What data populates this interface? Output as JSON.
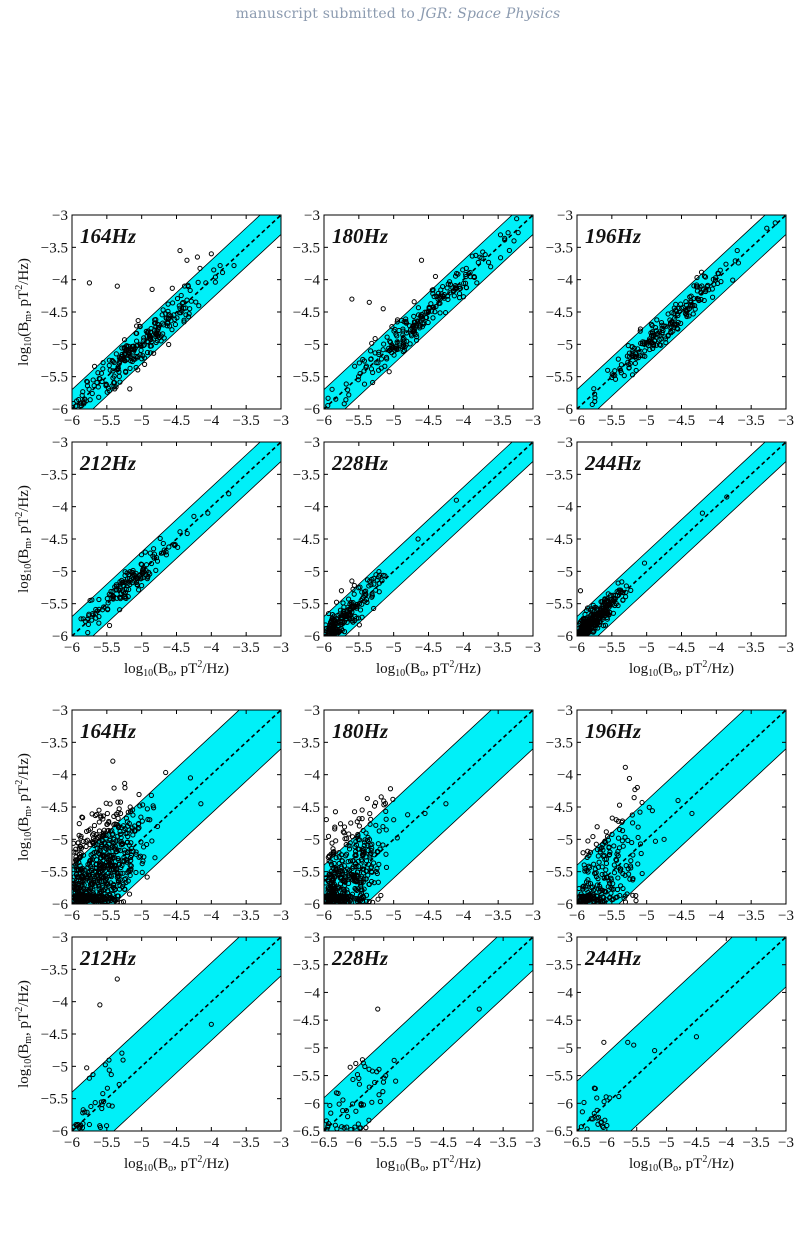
{
  "header": {
    "prefix": "manuscript submitted to ",
    "journal": "JGR: Space Physics"
  },
  "axis_labels": {
    "ylabel_main": "log",
    "ylabel_sub": "10",
    "ylabel_rest": "(B",
    "ylabel_subB": "m",
    "ylabel_tail": ", pT",
    "ylabel_sup": "2",
    "ylabel_end": "/Hz)",
    "xlabel_main": "log",
    "xlabel_sub": "10",
    "xlabel_rest": "(B",
    "xlabel_subB": "o",
    "xlabel_tail": ", pT",
    "xlabel_sup": "2",
    "xlabel_end": "/Hz)"
  },
  "chart_data": [
    {
      "type": "scatter",
      "title": "164Hz",
      "xlim": [
        -6,
        -3
      ],
      "ylim": [
        -6,
        -3
      ],
      "xticks": [
        "−6",
        "−5.5",
        "−5",
        "−4.5",
        "−4",
        "−3.5",
        "−3"
      ],
      "yticks": [
        "−6",
        "−5.5",
        "−5",
        "−4.5",
        "−4",
        "−3.5",
        "−3"
      ],
      "band_halfwidth": 0.3,
      "reference_line": "y = x",
      "points": {
        "x_center": -4.95,
        "x_spread": 0.45,
        "y_spread": 0.17,
        "n": 250,
        "outliers": [
          [
            -5.75,
            -4.05
          ],
          [
            -5.35,
            -4.1
          ],
          [
            -4.85,
            -4.15
          ],
          [
            -4.35,
            -3.7
          ],
          [
            -4.2,
            -3.65
          ],
          [
            -4.0,
            -3.6
          ],
          [
            -4.45,
            -3.55
          ]
        ]
      }
    },
    {
      "type": "scatter",
      "title": "180Hz",
      "xlim": [
        -6,
        -3
      ],
      "ylim": [
        -6,
        -3
      ],
      "xticks": [
        "−6",
        "−5.5",
        "−5",
        "−4.5",
        "−4",
        "−3.5",
        "−3"
      ],
      "yticks": [
        "−6",
        "−5.5",
        "−5",
        "−4.5",
        "−4",
        "−3.5",
        "−3"
      ],
      "band_halfwidth": 0.3,
      "reference_line": "y = x",
      "points": {
        "x_center": -4.65,
        "x_spread": 0.55,
        "y_spread": 0.14,
        "n": 230,
        "outliers": [
          [
            -5.6,
            -4.3
          ],
          [
            -5.35,
            -4.35
          ],
          [
            -5.15,
            -4.45
          ],
          [
            -4.6,
            -3.7
          ],
          [
            -4.4,
            -3.95
          ],
          [
            -4.85,
            -4.65
          ]
        ]
      }
    },
    {
      "type": "scatter",
      "title": "196Hz",
      "xlim": [
        -6,
        -3
      ],
      "ylim": [
        -6,
        -3
      ],
      "xticks": [
        "−6",
        "−5.5",
        "−5",
        "−4.5",
        "−4",
        "−3.5",
        "−3"
      ],
      "yticks": [
        "−6",
        "−5.5",
        "−5",
        "−4.5",
        "−4",
        "−3.5",
        "−3"
      ],
      "band_halfwidth": 0.3,
      "reference_line": "y = x",
      "points": {
        "x_center": -4.7,
        "x_spread": 0.5,
        "y_spread": 0.12,
        "n": 200,
        "outliers": [
          [
            -3.7,
            -3.55
          ]
        ]
      }
    },
    {
      "type": "scatter",
      "title": "212Hz",
      "xlim": [
        -6,
        -3
      ],
      "ylim": [
        -6,
        -3
      ],
      "xticks": [
        "−6",
        "−5.5",
        "−5",
        "−4.5",
        "−4",
        "−3.5",
        "−3"
      ],
      "yticks": [
        "−6",
        "−5.5",
        "−5",
        "−4.5",
        "−4",
        "−3.5",
        "−3"
      ],
      "band_halfwidth": 0.3,
      "reference_line": "y = x",
      "points": {
        "x_center": -5.2,
        "x_spread": 0.35,
        "y_spread": 0.12,
        "n": 150,
        "outliers": [
          [
            -4.05,
            -4.1
          ],
          [
            -3.75,
            -3.8
          ],
          [
            -4.25,
            -4.15
          ]
        ]
      }
    },
    {
      "type": "scatter",
      "title": "228Hz",
      "xlim": [
        -6,
        -3
      ],
      "ylim": [
        -6,
        -3
      ],
      "xticks": [
        "−6",
        "−5.5",
        "−5",
        "−4.5",
        "−4",
        "−3.5",
        "−3"
      ],
      "yticks": [
        "−6",
        "−5.5",
        "−5",
        "−4.5",
        "−4",
        "−3.5",
        "−3"
      ],
      "band_halfwidth": 0.3,
      "reference_line": "y = x",
      "points": {
        "x_center": -5.7,
        "x_spread": 0.25,
        "y_spread": 0.12,
        "n": 200,
        "outliers": [
          [
            -4.1,
            -3.9
          ],
          [
            -4.65,
            -4.5
          ],
          [
            -5.6,
            -5.15
          ],
          [
            -5.75,
            -5.3
          ]
        ]
      }
    },
    {
      "type": "scatter",
      "title": "244Hz",
      "xlim": [
        -6,
        -3
      ],
      "ylim": [
        -6,
        -3
      ],
      "xticks": [
        "−6",
        "−5.5",
        "−5",
        "−4.5",
        "−4",
        "−3.5",
        "−3"
      ],
      "yticks": [
        "−6",
        "−5.5",
        "−5",
        "−4.5",
        "−4",
        "−3.5",
        "−3"
      ],
      "band_halfwidth": 0.3,
      "reference_line": "y = x",
      "points": {
        "x_center": -5.75,
        "x_spread": 0.22,
        "y_spread": 0.09,
        "n": 300,
        "outliers": [
          [
            -3.85,
            -3.85
          ],
          [
            -4.2,
            -4.1
          ],
          [
            -5.95,
            -5.3
          ],
          [
            -5.8,
            -5.6
          ]
        ]
      }
    },
    {
      "type": "scatter",
      "title": "164Hz",
      "xlim": [
        -6,
        -3
      ],
      "ylim": [
        -6,
        -3
      ],
      "xticks": [
        "−6",
        "−5.5",
        "−5",
        "−4.5",
        "−4",
        "−3.5",
        "−3"
      ],
      "yticks": [
        "−6",
        "−5.5",
        "−5",
        "−4.5",
        "−4",
        "−3.5",
        "−3"
      ],
      "band_halfwidth": 0.6,
      "reference_line": "y = x",
      "points": {
        "x_center": -5.65,
        "x_spread": 0.3,
        "y_spread": 0.45,
        "n": 700,
        "outliers": [
          [
            -4.15,
            -4.45
          ],
          [
            -4.3,
            -4.05
          ]
        ]
      }
    },
    {
      "type": "scatter",
      "title": "180Hz",
      "xlim": [
        -6,
        -3
      ],
      "ylim": [
        -6,
        -3
      ],
      "xticks": [
        "−6",
        "−5.5",
        "−5",
        "−4.5",
        "−4",
        "−3.5",
        "−3"
      ],
      "yticks": [
        "−6",
        "−5.5",
        "−5",
        "−4.5",
        "−4",
        "−3.5",
        "−3"
      ],
      "band_halfwidth": 0.6,
      "reference_line": "y = x",
      "points": {
        "x_center": -5.7,
        "x_spread": 0.28,
        "y_spread": 0.45,
        "n": 450,
        "outliers": [
          [
            -4.55,
            -4.6
          ],
          [
            -4.25,
            -4.45
          ]
        ]
      }
    },
    {
      "type": "scatter",
      "title": "196Hz",
      "xlim": [
        -6,
        -3
      ],
      "ylim": [
        -6,
        -3
      ],
      "xticks": [
        "−6",
        "−5.5",
        "−5",
        "−4.5",
        "−4",
        "−3.5",
        "−3"
      ],
      "yticks": [
        "−6",
        "−5.5",
        "−5",
        "−4.5",
        "−4",
        "−3.5",
        "−3"
      ],
      "band_halfwidth": 0.6,
      "reference_line": "y = x",
      "points": {
        "x_center": -5.65,
        "x_spread": 0.3,
        "y_spread": 0.45,
        "n": 250,
        "outliers": [
          [
            -4.75,
            -5.0
          ],
          [
            -4.55,
            -4.4
          ],
          [
            -4.35,
            -4.6
          ]
        ]
      }
    },
    {
      "type": "scatter",
      "title": "212Hz",
      "xlim": [
        -6,
        -3
      ],
      "ylim": [
        -6,
        -3
      ],
      "xticks": [
        "−6",
        "−5.5",
        "−5",
        "−4.5",
        "−4",
        "−3.5",
        "−3"
      ],
      "yticks": [
        "−6",
        "−5.5",
        "−5",
        "−4.5",
        "−4",
        "−3.5",
        "−3"
      ],
      "band_halfwidth": 0.6,
      "reference_line": "y = x",
      "points": {
        "x_center": -5.7,
        "x_spread": 0.25,
        "y_spread": 0.35,
        "n": 35,
        "outliers": [
          [
            -4.0,
            -4.35
          ],
          [
            -5.35,
            -3.65
          ],
          [
            -5.6,
            -4.05
          ],
          [
            -5.85,
            -5.95
          ],
          [
            -5.75,
            -5.9
          ]
        ]
      }
    },
    {
      "type": "scatter",
      "title": "228Hz",
      "xlim": [
        -6.5,
        -3
      ],
      "ylim": [
        -6.5,
        -3
      ],
      "xticks": [
        "−6.5",
        "−6",
        "−5.5",
        "−5",
        "−4.5",
        "−4",
        "−3.5",
        "−3"
      ],
      "yticks": [
        "−6.5",
        "−6",
        "−5.5",
        "−5",
        "−4.5",
        "−4",
        "−3.5",
        "−3"
      ],
      "band_halfwidth": 0.6,
      "reference_line": "y = x",
      "points": {
        "x_center": -6.0,
        "x_spread": 0.25,
        "y_spread": 0.35,
        "n": 55,
        "outliers": [
          [
            -3.9,
            -4.3
          ],
          [
            -5.6,
            -4.3
          ],
          [
            -5.3,
            -5.6
          ]
        ]
      }
    },
    {
      "type": "scatter",
      "title": "244Hz",
      "xlim": [
        -6.5,
        -3
      ],
      "ylim": [
        -6.5,
        -3
      ],
      "xticks": [
        "−6.5",
        "−6",
        "−5.5",
        "−5",
        "−4.5",
        "−4",
        "−3.5",
        "−3"
      ],
      "yticks": [
        "−6.5",
        "−6",
        "−5.5",
        "−5",
        "−4.5",
        "−4",
        "−3.5",
        "−3"
      ],
      "band_halfwidth": 0.9,
      "reference_line": "y = x",
      "points": {
        "x_center": -6.2,
        "x_spread": 0.18,
        "y_spread": 0.4,
        "n": 22,
        "outliers": [
          [
            -4.5,
            -4.8
          ],
          [
            -5.2,
            -5.05
          ],
          [
            -5.55,
            -4.95
          ],
          [
            -5.65,
            -4.9
          ],
          [
            -6.05,
            -4.9
          ],
          [
            -6.1,
            -6.35
          ],
          [
            -6.0,
            -6.4
          ]
        ]
      }
    }
  ]
}
